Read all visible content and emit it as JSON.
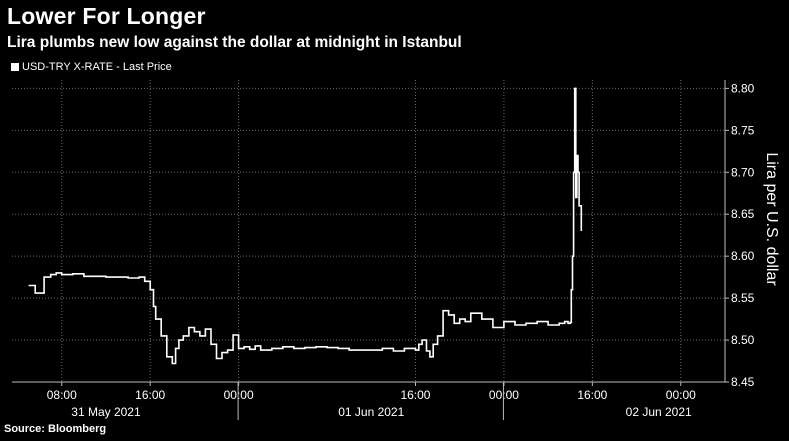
{
  "header": {
    "title": "Lower For Longer",
    "subtitle": "Lira plumbs new low against the dollar at midnight in Istanbul"
  },
  "legend": {
    "label": "USD-TRY X-RATE - Last Price",
    "color": "#ffffff"
  },
  "source": "Source: Bloomberg",
  "chart_data": {
    "type": "line",
    "title": "Lower For Longer",
    "subtitle": "Lira plumbs new low against the dollar at midnight in Istanbul",
    "ylabel": "Lira per U.S. dollar",
    "y_axis_side": "right",
    "ylim": [
      8.45,
      8.81
    ],
    "yticks": [
      8.45,
      8.5,
      8.55,
      8.6,
      8.65,
      8.7,
      8.75,
      8.8
    ],
    "ytick_labels": [
      "8.45",
      "8.50",
      "8.55",
      "8.60",
      "8.65",
      "8.70",
      "8.75",
      "8.80"
    ],
    "x_unit": "hours from 31 May 2021 00:00",
    "xlim": [
      3.5,
      68
    ],
    "xticks": [
      8,
      16,
      24,
      40,
      48,
      56,
      64
    ],
    "xtick_labels": [
      "08:00",
      "16:00",
      "00:00",
      "16:00",
      "00:00",
      "16:00",
      "00:00"
    ],
    "day_dividers": [
      24,
      48
    ],
    "day_labels": [
      {
        "text": "31 May 2021",
        "x": 12
      },
      {
        "text": "01 Jun 2021",
        "x": 36
      },
      {
        "text": "02 Jun 2021",
        "x": 62
      }
    ],
    "grid": true,
    "legend_position": "top-left",
    "series": [
      {
        "name": "USD-TRY X-RATE - Last Price",
        "color": "#ffffff",
        "x": [
          5.0,
          5.5,
          5.6,
          6.3,
          6.4,
          7.0,
          7.5,
          8.0,
          9.0,
          10.0,
          11.0,
          12.0,
          13.0,
          14.0,
          15.0,
          15.5,
          16.0,
          16.3,
          16.5,
          17.0,
          17.5,
          18.0,
          18.3,
          18.6,
          19.0,
          19.5,
          20.0,
          20.5,
          21.0,
          21.5,
          22.0,
          22.5,
          23.0,
          23.5,
          24.0,
          24.5,
          25.0,
          25.5,
          26.0,
          27.0,
          28.0,
          29.0,
          30.0,
          31.0,
          32.0,
          33.0,
          34.0,
          35.0,
          36.0,
          37.0,
          38.0,
          39.0,
          40.0,
          40.3,
          40.6,
          41.0,
          41.3,
          41.6,
          42.0,
          42.5,
          43.0,
          43.5,
          44.0,
          44.5,
          45.0,
          46.0,
          47.0,
          48.0,
          49.0,
          50.0,
          51.0,
          52.0,
          53.0,
          53.5,
          53.8,
          54.0,
          54.1,
          54.2,
          54.3,
          54.4,
          54.5,
          54.6,
          54.7,
          54.8,
          55.0
        ],
        "y": [
          8.565,
          8.565,
          8.556,
          8.556,
          8.575,
          8.578,
          8.58,
          8.578,
          8.579,
          8.576,
          8.576,
          8.575,
          8.575,
          8.574,
          8.575,
          8.57,
          8.56,
          8.54,
          8.525,
          8.505,
          8.48,
          8.472,
          8.49,
          8.5,
          8.505,
          8.515,
          8.51,
          8.505,
          8.513,
          8.495,
          8.478,
          8.485,
          8.488,
          8.506,
          8.49,
          8.492,
          8.489,
          8.493,
          8.488,
          8.49,
          8.492,
          8.49,
          8.491,
          8.492,
          8.491,
          8.49,
          8.488,
          8.488,
          8.488,
          8.49,
          8.487,
          8.49,
          8.488,
          8.495,
          8.5,
          8.487,
          8.48,
          8.495,
          8.505,
          8.535,
          8.53,
          8.52,
          8.525,
          8.522,
          8.532,
          8.525,
          8.515,
          8.522,
          8.518,
          8.52,
          8.522,
          8.518,
          8.52,
          8.522,
          8.52,
          8.521,
          8.56,
          8.6,
          8.7,
          8.8,
          8.67,
          8.72,
          8.7,
          8.66,
          8.63
        ]
      }
    ]
  }
}
